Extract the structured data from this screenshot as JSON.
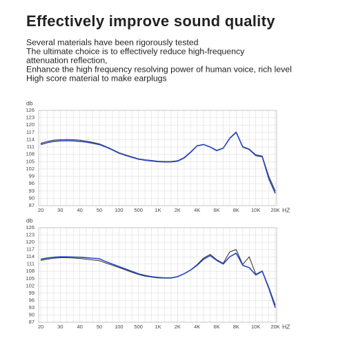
{
  "intro": {
    "title": "Effectively improve sound quality",
    "lines": [
      "Several materials have been rigorously tested",
      "The ultimate choice is to effectively reduce high-frequency",
      "attenuation reflection,",
      "Enhance the high frequency resolving power of human voice, rich level",
      "High score material to make earplugs"
    ]
  },
  "chart_data": [
    {
      "type": "line",
      "y_label": "db",
      "x_unit": "HZ",
      "grid": true,
      "categories": [
        "20",
        null,
        null,
        "30",
        null,
        null,
        "40",
        null,
        null,
        "50",
        null,
        null,
        "100",
        null,
        null,
        "500",
        null,
        null,
        "1K",
        null,
        null,
        "2K",
        null,
        null,
        "4K",
        null,
        null,
        "6K",
        null,
        null,
        "8K",
        null,
        null,
        "10K",
        null,
        null,
        "20K"
      ],
      "ylim": [
        87,
        126
      ],
      "yticks": [
        87,
        90,
        93,
        96,
        99,
        102,
        105,
        108,
        111,
        114,
        117,
        120,
        123,
        126
      ],
      "series": [
        {
          "color": "#2b2b2b",
          "values": [
            112.5,
            113.3,
            113.8,
            114,
            114.1,
            114,
            113.8,
            113.4,
            112.9,
            112.3,
            111.2,
            110,
            108.7,
            107.8,
            107,
            106.2,
            105.8,
            105.5,
            105.2,
            105.1,
            105.1,
            105.4,
            106.7,
            109,
            111.6,
            112.1,
            111.1,
            109.7,
            110.6,
            114.7,
            117.2,
            111.2,
            110.2,
            107.8,
            107.3,
            99,
            93
          ]
        },
        {
          "color": "#2a47c8",
          "values": [
            112,
            112.8,
            113.3,
            113.5,
            113.6,
            113.5,
            113.3,
            113,
            112.5,
            112,
            111,
            109.8,
            108.5,
            107.6,
            106.8,
            106,
            105.6,
            105.3,
            105,
            104.9,
            104.9,
            105.2,
            106.5,
            108.8,
            111.5,
            112,
            111,
            109.5,
            110.5,
            114.5,
            117,
            111,
            110,
            107.5,
            107,
            98,
            92
          ]
        }
      ]
    },
    {
      "type": "line",
      "y_label": "db",
      "x_unit": "HZ",
      "grid": true,
      "categories": [
        "20",
        null,
        null,
        "30",
        null,
        null,
        "40",
        null,
        null,
        "50",
        null,
        null,
        "100",
        null,
        null,
        "500",
        null,
        null,
        "1K",
        null,
        null,
        "2K",
        null,
        null,
        "4K",
        null,
        null,
        "6K",
        null,
        null,
        "8K",
        null,
        null,
        "10K",
        null,
        null,
        "20K"
      ],
      "ylim": [
        87,
        126
      ],
      "yticks": [
        87,
        90,
        93,
        96,
        99,
        102,
        105,
        108,
        111,
        114,
        117,
        120,
        123,
        126
      ],
      "series": [
        {
          "color": "#2b2b2b",
          "values": [
            112.5,
            113,
            113.4,
            113.6,
            113.6,
            113.5,
            113.3,
            113,
            112.7,
            112.4,
            111.4,
            110.5,
            109.6,
            108.6,
            107.6,
            106.7,
            106,
            105.6,
            105.3,
            105.2,
            105.2,
            105.7,
            107,
            108.6,
            110.8,
            113.5,
            115,
            112.8,
            111.3,
            116,
            117,
            110.8,
            114,
            106.8,
            108.2,
            101.5,
            94
          ]
        },
        {
          "color": "#2a47c8",
          "values": [
            113,
            113.5,
            113.8,
            114,
            114,
            113.9,
            113.8,
            113.6,
            113.4,
            113.2,
            112,
            111,
            110,
            109,
            108,
            107,
            106.3,
            105.8,
            105.5,
            105.3,
            105.3,
            105.8,
            107,
            108.5,
            110.5,
            113,
            114.5,
            112.5,
            111,
            114,
            115.5,
            110.5,
            109.5,
            106.5,
            108,
            101,
            93
          ]
        }
      ]
    }
  ]
}
